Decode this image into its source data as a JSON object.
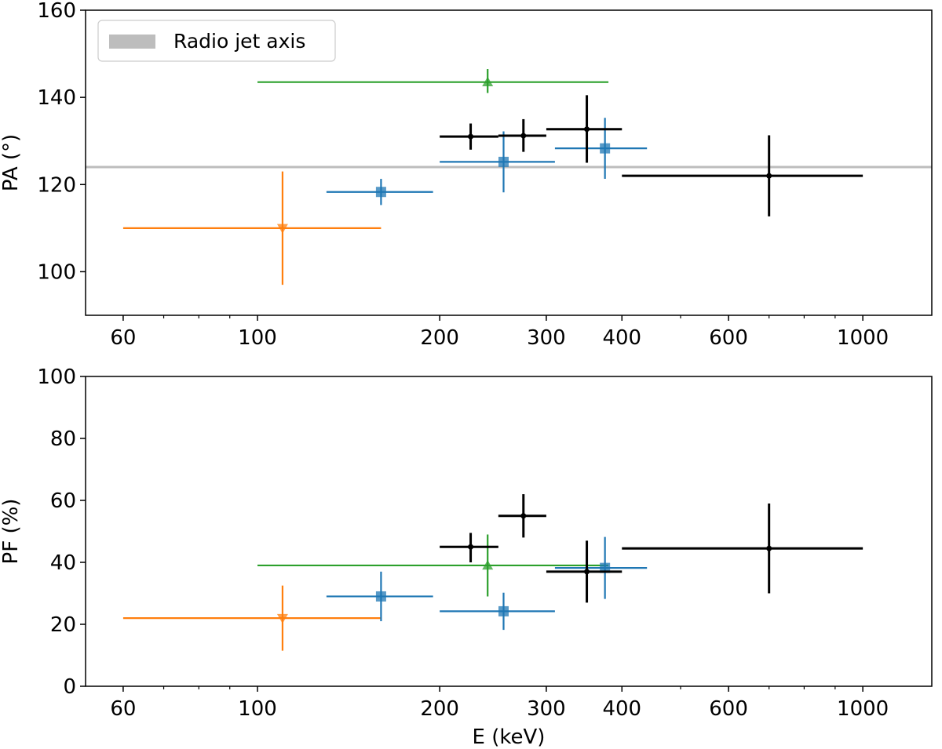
{
  "chart_data": [
    {
      "type": "scatter",
      "panel": "top",
      "ylabel": "PA (°)",
      "xlabel": "",
      "xscale": "log",
      "xlim": [
        52,
        1300
      ],
      "ylim": [
        90,
        160
      ],
      "xticks": [
        {
          "value": 60,
          "label": "60"
        },
        {
          "value": 100,
          "label": "100"
        },
        {
          "value": 200,
          "label": "200"
        },
        {
          "value": 300,
          "label": "300"
        },
        {
          "value": 400,
          "label": "400"
        },
        {
          "value": 600,
          "label": "600"
        },
        {
          "value": 1000,
          "label": "1000"
        }
      ],
      "yticks": [
        {
          "value": 100,
          "label": "100"
        },
        {
          "value": 120,
          "label": "120"
        },
        {
          "value": 140,
          "label": "140"
        },
        {
          "value": 160,
          "label": "160"
        }
      ],
      "reference_line": {
        "name": "Radio jet axis",
        "y": 124,
        "color": "#bdbdbd"
      },
      "legend": {
        "label": "Radio jet axis",
        "placement": "top-left"
      },
      "series": [
        {
          "name": "orange",
          "color": "#ff7f0e",
          "marker": "triangle-down",
          "points": [
            {
              "x": 110,
              "xlo": 60,
              "xhi": 160,
              "y": 110,
              "ylo": 97,
              "yhi": 123
            }
          ]
        },
        {
          "name": "green",
          "color": "#2ca02c",
          "marker": "triangle-up",
          "points": [
            {
              "x": 240,
              "xlo": 100,
              "xhi": 380,
              "y": 143.5,
              "ylo": 141,
              "yhi": 146.5
            }
          ]
        },
        {
          "name": "blue",
          "color": "#1f77b4",
          "marker": "square",
          "points": [
            {
              "x": 160,
              "xlo": 130,
              "xhi": 195,
              "y": 118.3,
              "ylo": 115.3,
              "yhi": 121.3
            },
            {
              "x": 255,
              "xlo": 200,
              "xhi": 310,
              "y": 125.2,
              "ylo": 118.2,
              "yhi": 132.2
            },
            {
              "x": 375,
              "xlo": 310,
              "xhi": 440,
              "y": 128.3,
              "ylo": 121.3,
              "yhi": 135.3
            }
          ]
        },
        {
          "name": "black",
          "color": "#000000",
          "marker": "circle",
          "points": [
            {
              "x": 225,
              "xlo": 200,
              "xhi": 250,
              "y": 131,
              "ylo": 128,
              "yhi": 134
            },
            {
              "x": 275,
              "xlo": 250,
              "xhi": 300,
              "y": 131.2,
              "ylo": 127.5,
              "yhi": 135
            },
            {
              "x": 350,
              "xlo": 300,
              "xhi": 400,
              "y": 132.7,
              "ylo": 125,
              "yhi": 140.5
            },
            {
              "x": 700,
              "xlo": 400,
              "xhi": 1000,
              "y": 122,
              "ylo": 112.7,
              "yhi": 131.3
            }
          ]
        }
      ]
    },
    {
      "type": "scatter",
      "panel": "bottom",
      "ylabel": "PF (%)",
      "xlabel": "E (keV)",
      "xscale": "log",
      "xlim": [
        52,
        1300
      ],
      "ylim": [
        0,
        100
      ],
      "xticks": [
        {
          "value": 60,
          "label": "60"
        },
        {
          "value": 100,
          "label": "100"
        },
        {
          "value": 200,
          "label": "200"
        },
        {
          "value": 300,
          "label": "300"
        },
        {
          "value": 400,
          "label": "400"
        },
        {
          "value": 600,
          "label": "600"
        },
        {
          "value": 1000,
          "label": "1000"
        }
      ],
      "yticks": [
        {
          "value": 0,
          "label": "0"
        },
        {
          "value": 20,
          "label": "20"
        },
        {
          "value": 40,
          "label": "40"
        },
        {
          "value": 60,
          "label": "60"
        },
        {
          "value": 80,
          "label": "80"
        },
        {
          "value": 100,
          "label": "100"
        }
      ],
      "series": [
        {
          "name": "orange",
          "color": "#ff7f0e",
          "marker": "triangle-down",
          "points": [
            {
              "x": 110,
              "xlo": 60,
              "xhi": 160,
              "y": 22,
              "ylo": 11.5,
              "yhi": 32.5
            }
          ]
        },
        {
          "name": "green",
          "color": "#2ca02c",
          "marker": "triangle-up",
          "points": [
            {
              "x": 240,
              "xlo": 100,
              "xhi": 380,
              "y": 39,
              "ylo": 29,
              "yhi": 49
            }
          ]
        },
        {
          "name": "blue",
          "color": "#1f77b4",
          "marker": "square",
          "points": [
            {
              "x": 160,
              "xlo": 130,
              "xhi": 195,
              "y": 29,
              "ylo": 21,
              "yhi": 37
            },
            {
              "x": 255,
              "xlo": 200,
              "xhi": 310,
              "y": 24.2,
              "ylo": 18.2,
              "yhi": 30.2
            },
            {
              "x": 375,
              "xlo": 310,
              "xhi": 440,
              "y": 38.2,
              "ylo": 28.2,
              "yhi": 48.2
            }
          ]
        },
        {
          "name": "black",
          "color": "#000000",
          "marker": "circle",
          "points": [
            {
              "x": 225,
              "xlo": 200,
              "xhi": 250,
              "y": 45,
              "ylo": 40,
              "yhi": 49.5
            },
            {
              "x": 275,
              "xlo": 250,
              "xhi": 300,
              "y": 55,
              "ylo": 48,
              "yhi": 62
            },
            {
              "x": 350,
              "xlo": 300,
              "xhi": 400,
              "y": 37,
              "ylo": 27,
              "yhi": 47
            },
            {
              "x": 700,
              "xlo": 400,
              "xhi": 1000,
              "y": 44.5,
              "ylo": 30,
              "yhi": 59
            }
          ]
        }
      ]
    }
  ]
}
